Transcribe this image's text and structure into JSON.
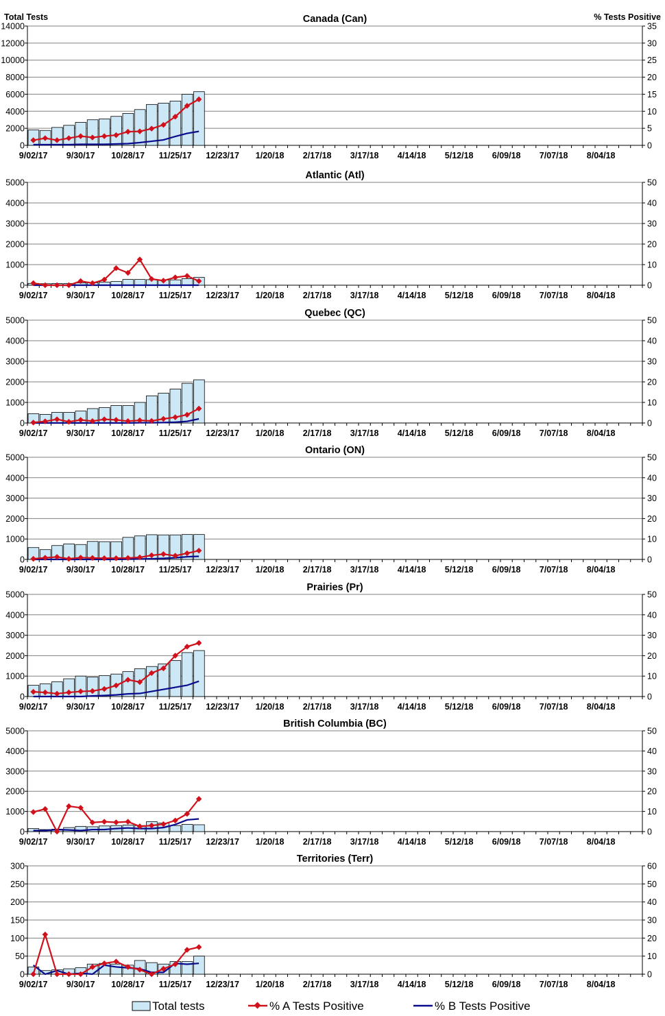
{
  "axis_titles": {
    "left": "Total Tests",
    "right": "% Tests Positive"
  },
  "legend": {
    "total": "Total tests",
    "a": "% A Tests Positive",
    "b": "% B Tests Positive"
  },
  "colors": {
    "bar_fill": "#CCE8F7",
    "bar_stroke": "#000000",
    "series_a": "#D0101A",
    "series_b": "#0A0A8C",
    "grid": "#808080"
  },
  "x_tick_labels": [
    "9/02/17",
    "9/30/17",
    "10/28/17",
    "11/25/17",
    "12/23/17",
    "1/20/18",
    "2/17/18",
    "3/17/18",
    "4/14/18",
    "5/12/18",
    "6/09/18",
    "7/07/18",
    "8/04/18"
  ],
  "chart_data": [
    {
      "type": "bar",
      "title": "Canada (Can)",
      "categories": [
        "9/02/17",
        "9/09/17",
        "9/16/17",
        "9/23/17",
        "9/30/17",
        "10/07/17",
        "10/14/17",
        "10/21/17",
        "10/28/17",
        "11/04/17",
        "11/11/17",
        "11/18/17",
        "11/25/17",
        "12/02/17",
        "12/09/17"
      ],
      "ylim": [
        0,
        14000
      ],
      "y2lim": [
        0,
        35
      ],
      "yticks": [
        0,
        2000,
        4000,
        6000,
        8000,
        10000,
        12000,
        14000
      ],
      "y2ticks": [
        0,
        5,
        10,
        15,
        20,
        25,
        30,
        35
      ],
      "series": [
        {
          "name": "Total tests",
          "type": "bar",
          "values": [
            1800,
            1750,
            2100,
            2350,
            2700,
            3000,
            3100,
            3400,
            3750,
            4200,
            4800,
            4950,
            5200,
            6000,
            6300
          ]
        },
        {
          "name": "% A Tests Positive",
          "type": "line",
          "values": [
            1.5,
            2.1,
            1.5,
            2.1,
            2.7,
            2.3,
            2.7,
            3.0,
            4.0,
            4.1,
            4.9,
            6.0,
            8.4,
            11.6,
            13.5
          ]
        },
        {
          "name": "% B Tests Positive",
          "type": "line",
          "values": [
            0.2,
            0.2,
            0.2,
            0.2,
            0.3,
            0.3,
            0.3,
            0.4,
            0.5,
            0.8,
            1.2,
            1.6,
            2.6,
            3.5,
            4.1
          ]
        }
      ]
    },
    {
      "type": "bar",
      "title": "Atlantic (Atl)",
      "categories": [
        "9/02/17",
        "9/09/17",
        "9/16/17",
        "9/23/17",
        "9/30/17",
        "10/07/17",
        "10/14/17",
        "10/21/17",
        "10/28/17",
        "11/04/17",
        "11/11/17",
        "11/18/17",
        "11/25/17",
        "12/02/17",
        "12/09/17"
      ],
      "ylim": [
        0,
        5000
      ],
      "y2lim": [
        0,
        50
      ],
      "yticks": [
        0,
        1000,
        2000,
        3000,
        4000,
        5000
      ],
      "y2ticks": [
        0,
        10,
        20,
        30,
        40,
        50
      ],
      "series": [
        {
          "name": "Total tests",
          "type": "bar",
          "values": [
            90,
            75,
            85,
            80,
            110,
            120,
            150,
            180,
            280,
            280,
            270,
            250,
            260,
            320,
            380
          ]
        },
        {
          "name": "% A Tests Positive",
          "type": "line",
          "values": [
            1.0,
            0.0,
            0.0,
            0.0,
            2.0,
            1.0,
            2.7,
            8.3,
            6.0,
            12.5,
            3.0,
            2.2,
            3.8,
            4.5,
            2.0
          ]
        },
        {
          "name": "% B Tests Positive",
          "type": "line",
          "values": [
            0.0,
            0.0,
            0.0,
            0.0,
            0.0,
            0.0,
            0.0,
            0.0,
            0.0,
            0.0,
            0.0,
            0.0,
            0.0,
            0.0,
            0.0
          ]
        }
      ]
    },
    {
      "type": "bar",
      "title": "Quebec (QC)",
      "categories": [
        "9/02/17",
        "9/09/17",
        "9/16/17",
        "9/23/17",
        "9/30/17",
        "10/07/17",
        "10/14/17",
        "10/21/17",
        "10/28/17",
        "11/04/17",
        "11/11/17",
        "11/18/17",
        "11/25/17",
        "12/02/17",
        "12/09/17"
      ],
      "ylim": [
        0,
        5000
      ],
      "y2lim": [
        0,
        50
      ],
      "yticks": [
        0,
        1000,
        2000,
        3000,
        4000,
        5000
      ],
      "y2ticks": [
        0,
        10,
        20,
        30,
        40,
        50
      ],
      "series": [
        {
          "name": "Total tests",
          "type": "bar",
          "values": [
            450,
            420,
            520,
            520,
            580,
            700,
            750,
            850,
            850,
            1000,
            1320,
            1450,
            1650,
            1930,
            2100
          ]
        },
        {
          "name": "% A Tests Positive",
          "type": "line",
          "values": [
            0.2,
            0.8,
            1.8,
            0.6,
            1.5,
            0.9,
            1.8,
            1.5,
            0.9,
            1.3,
            1.0,
            2.0,
            2.8,
            4.0,
            7.0
          ]
        },
        {
          "name": "% B Tests Positive",
          "type": "line",
          "values": [
            0.0,
            0.0,
            0.0,
            0.0,
            0.0,
            0.0,
            0.0,
            0.0,
            0.0,
            0.1,
            0.1,
            0.2,
            0.4,
            0.8,
            2.0
          ]
        }
      ]
    },
    {
      "type": "bar",
      "title": "Ontario (ON)",
      "categories": [
        "9/02/17",
        "9/09/17",
        "9/16/17",
        "9/23/17",
        "9/30/17",
        "10/07/17",
        "10/14/17",
        "10/21/17",
        "10/28/17",
        "11/04/17",
        "11/11/17",
        "11/18/17",
        "11/25/17",
        "12/02/17",
        "12/09/17"
      ],
      "ylim": [
        0,
        5000
      ],
      "y2lim": [
        0,
        50
      ],
      "yticks": [
        0,
        1000,
        2000,
        3000,
        4000,
        5000
      ],
      "y2ticks": [
        0,
        10,
        20,
        30,
        40,
        50
      ],
      "series": [
        {
          "name": "Total tests",
          "type": "bar",
          "values": [
            580,
            480,
            680,
            760,
            730,
            880,
            870,
            870,
            1080,
            1150,
            1210,
            1200,
            1200,
            1220,
            1220
          ]
        },
        {
          "name": "% A Tests Positive",
          "type": "line",
          "values": [
            0.3,
            0.8,
            1.2,
            0.3,
            0.9,
            0.7,
            0.6,
            0.6,
            0.7,
            1.0,
            2.0,
            2.6,
            1.8,
            3.0,
            4.3
          ]
        },
        {
          "name": "% B Tests Positive",
          "type": "line",
          "values": [
            0.0,
            0.0,
            0.0,
            0.0,
            0.0,
            0.0,
            0.0,
            0.0,
            0.1,
            0.2,
            0.3,
            0.5,
            0.8,
            1.3,
            1.5
          ]
        }
      ]
    },
    {
      "type": "bar",
      "title": "Prairies (Pr)",
      "categories": [
        "9/02/17",
        "9/09/17",
        "9/16/17",
        "9/23/17",
        "9/30/17",
        "10/07/17",
        "10/14/17",
        "10/21/17",
        "10/28/17",
        "11/04/17",
        "11/11/17",
        "11/18/17",
        "11/25/17",
        "12/02/17",
        "12/09/17"
      ],
      "ylim": [
        0,
        5000
      ],
      "y2lim": [
        0,
        50
      ],
      "yticks": [
        0,
        1000,
        2000,
        3000,
        4000,
        5000
      ],
      "y2ticks": [
        0,
        10,
        20,
        30,
        40,
        50
      ],
      "series": [
        {
          "name": "Total tests",
          "type": "bar",
          "values": [
            550,
            620,
            720,
            870,
            1000,
            950,
            1020,
            1100,
            1220,
            1360,
            1470,
            1600,
            1760,
            2150,
            2250
          ]
        },
        {
          "name": "% A Tests Positive",
          "type": "line",
          "values": [
            2.3,
            2.0,
            1.4,
            2.0,
            2.5,
            2.7,
            3.7,
            5.4,
            8.2,
            7.1,
            11.5,
            13.8,
            20.0,
            24.4,
            26.2
          ]
        },
        {
          "name": "% B Tests Positive",
          "type": "line",
          "values": [
            0.0,
            0.0,
            0.0,
            0.0,
            0.0,
            0.3,
            0.5,
            0.8,
            1.3,
            1.5,
            2.5,
            3.5,
            4.5,
            5.5,
            7.5
          ]
        }
      ]
    },
    {
      "type": "bar",
      "title": "British Columbia (BC)",
      "categories": [
        "9/02/17",
        "9/09/17",
        "9/16/17",
        "9/23/17",
        "9/30/17",
        "10/07/17",
        "10/14/17",
        "10/21/17",
        "10/28/17",
        "11/04/17",
        "11/11/17",
        "11/18/17",
        "11/25/17",
        "12/02/17",
        "12/09/17"
      ],
      "ylim": [
        0,
        5000
      ],
      "y2lim": [
        0,
        50
      ],
      "yticks": [
        0,
        1000,
        2000,
        3000,
        4000,
        5000
      ],
      "y2ticks": [
        0,
        10,
        20,
        30,
        40,
        50
      ],
      "series": [
        {
          "name": "Total tests",
          "type": "bar",
          "values": [
            150,
            100,
            120,
            200,
            260,
            240,
            280,
            300,
            320,
            300,
            490,
            420,
            300,
            360,
            340
          ]
        },
        {
          "name": "% A Tests Positive",
          "type": "line",
          "values": [
            9.7,
            11.2,
            0.0,
            12.6,
            11.8,
            4.5,
            4.9,
            4.6,
            4.9,
            2.6,
            3.0,
            3.7,
            5.5,
            8.8,
            16.2
          ]
        },
        {
          "name": "% B Tests Positive",
          "type": "line",
          "values": [
            0.5,
            0.5,
            1.0,
            0.8,
            0.5,
            1.0,
            1.0,
            1.5,
            1.8,
            1.5,
            1.5,
            2.0,
            3.5,
            5.8,
            6.3
          ]
        }
      ]
    },
    {
      "type": "bar",
      "title": "Territories (Terr)",
      "categories": [
        "9/02/17",
        "9/09/17",
        "9/16/17",
        "9/23/17",
        "9/30/17",
        "10/07/17",
        "10/14/17",
        "10/21/17",
        "10/28/17",
        "11/04/17",
        "11/11/17",
        "11/18/17",
        "11/25/17",
        "12/02/17",
        "12/09/17"
      ],
      "ylim": [
        0,
        300
      ],
      "y2lim": [
        0,
        60
      ],
      "yticks": [
        0,
        50,
        100,
        150,
        200,
        250,
        300
      ],
      "y2ticks": [
        0,
        10,
        20,
        30,
        40,
        50,
        60
      ],
      "series": [
        {
          "name": "Total tests",
          "type": "bar",
          "values": [
            20,
            10,
            12,
            15,
            18,
            28,
            30,
            28,
            25,
            38,
            32,
            28,
            35,
            35,
            50
          ]
        },
        {
          "name": "% A Tests Positive",
          "type": "line",
          "values": [
            0.0,
            22.0,
            0.0,
            0.0,
            0.0,
            4.0,
            6.0,
            7.0,
            4.0,
            2.5,
            0.0,
            3.0,
            5.5,
            13.5,
            15.0
          ]
        },
        {
          "name": "% B Tests Positive",
          "type": "line",
          "values": [
            5.0,
            0.0,
            2.0,
            0.0,
            0.5,
            0.0,
            5.0,
            4.0,
            3.5,
            3.0,
            1.0,
            1.0,
            6.0,
            5.5,
            6.0
          ]
        }
      ]
    }
  ]
}
